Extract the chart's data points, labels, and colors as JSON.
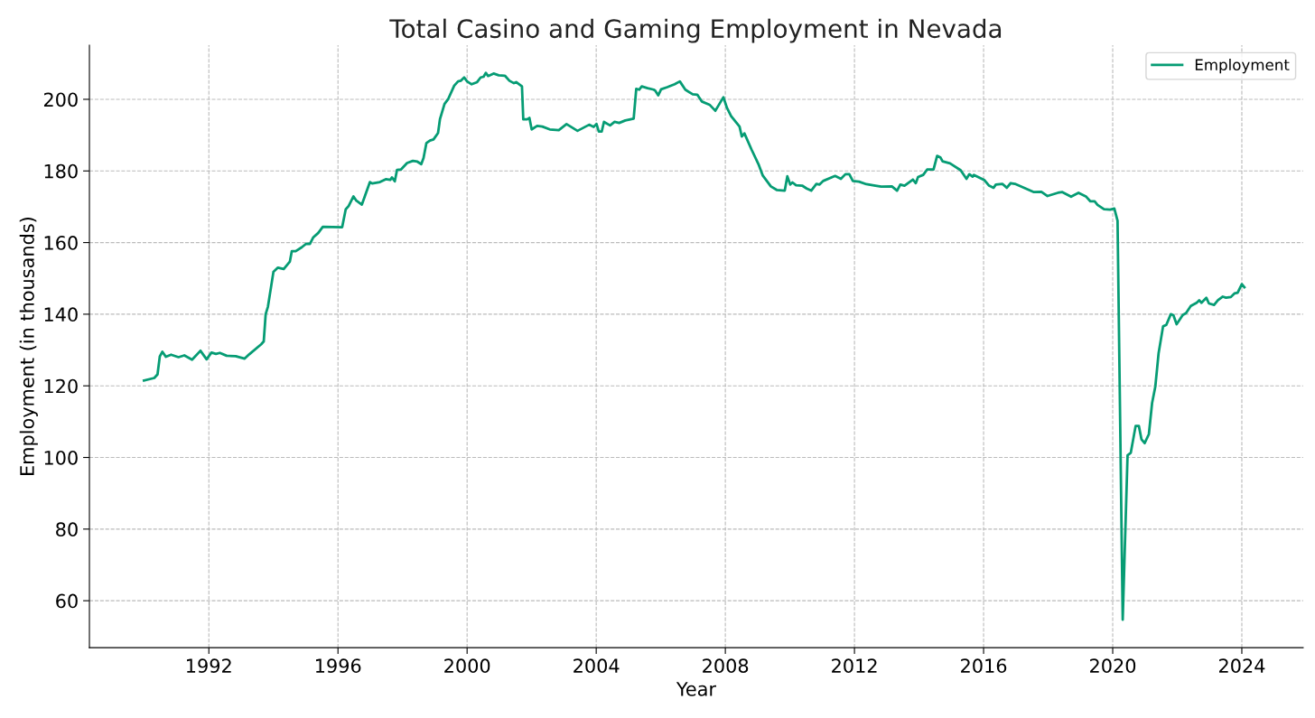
{
  "chart_data": {
    "type": "line",
    "title": "Total Casino and Gaming Employment in Nevada",
    "xlabel": "Year",
    "ylabel": "Employment (in thousands)",
    "xlim": [
      1988.3,
      2025.9
    ],
    "xticks": [
      1992,
      1996,
      2000,
      2004,
      2008,
      2012,
      2016,
      2020,
      2024
    ],
    "ylim": [
      46.9,
      215.1
    ],
    "yticks": [
      60,
      80,
      100,
      120,
      140,
      160,
      180,
      200
    ],
    "grid": true,
    "legend": "top right",
    "line_style": "solid",
    "series": [
      {
        "name": "Employment",
        "color": "#069c74",
        "x": [
          1989.99,
          1990.31,
          1990.41,
          1990.48,
          1990.56,
          1990.67,
          1990.83,
          1991.06,
          1991.24,
          1991.48,
          1991.74,
          1991.93,
          1992.08,
          1992.22,
          1992.34,
          1992.55,
          1992.83,
          1993.11,
          1993.25,
          1993.62,
          1993.7,
          1993.76,
          1993.83,
          1994.0,
          1994.14,
          1994.32,
          1994.51,
          1994.57,
          1994.69,
          1994.88,
          1995.02,
          1995.13,
          1995.23,
          1995.39,
          1995.53,
          1996.13,
          1996.24,
          1996.33,
          1996.48,
          1996.57,
          1996.74,
          1996.99,
          1997.06,
          1997.3,
          1997.48,
          1997.62,
          1997.67,
          1997.76,
          1997.83,
          1997.95,
          1998.14,
          1998.32,
          1998.46,
          1998.58,
          1998.65,
          1998.74,
          1998.85,
          1998.96,
          1999.1,
          1999.16,
          1999.3,
          1999.41,
          1999.6,
          1999.72,
          1999.81,
          1999.91,
          2000.0,
          2000.14,
          2000.31,
          2000.42,
          2000.51,
          2000.58,
          2000.65,
          2000.82,
          2000.98,
          2001.17,
          2001.31,
          2001.45,
          2001.52,
          2001.7,
          2001.74,
          2001.86,
          2001.93,
          2002.0,
          2002.17,
          2002.33,
          2002.56,
          2002.84,
          2003.08,
          2003.42,
          2003.78,
          2003.92,
          2004.01,
          2004.08,
          2004.17,
          2004.24,
          2004.43,
          2004.57,
          2004.71,
          2004.9,
          2005.16,
          2005.24,
          2005.33,
          2005.41,
          2005.59,
          2005.78,
          2005.83,
          2005.92,
          2006.01,
          2006.2,
          2006.43,
          2006.59,
          2006.76,
          2006.99,
          2007.13,
          2007.27,
          2007.51,
          2007.69,
          2007.94,
          2008.05,
          2008.18,
          2008.44,
          2008.51,
          2008.59,
          2008.81,
          2009.04,
          2009.16,
          2009.41,
          2009.59,
          2009.84,
          2009.92,
          2010.01,
          2010.08,
          2010.19,
          2010.38,
          2010.52,
          2010.66,
          2010.82,
          2010.92,
          2011.03,
          2011.4,
          2011.58,
          2011.72,
          2011.84,
          2011.95,
          2012.14,
          2012.37,
          2012.65,
          2012.83,
          2013.16,
          2013.32,
          2013.42,
          2013.55,
          2013.81,
          2013.9,
          2013.97,
          2014.13,
          2014.25,
          2014.45,
          2014.56,
          2014.66,
          2014.73,
          2014.96,
          2015.29,
          2015.47,
          2015.56,
          2015.66,
          2015.7,
          2016.03,
          2016.17,
          2016.31,
          2016.38,
          2016.58,
          2016.72,
          2016.84,
          2016.97,
          2017.56,
          2017.79,
          2017.98,
          2018.3,
          2018.44,
          2018.71,
          2018.94,
          2019.18,
          2019.31,
          2019.44,
          2019.53,
          2019.73,
          2019.92,
          2020.05,
          2020.15,
          2020.31,
          2020.46,
          2020.56,
          2020.71,
          2020.81,
          2020.89,
          2020.99,
          2021.12,
          2021.22,
          2021.32,
          2021.42,
          2021.56,
          2021.66,
          2021.8,
          2021.88,
          2021.98,
          2022.17,
          2022.27,
          2022.42,
          2022.6,
          2022.68,
          2022.75,
          2022.9,
          2022.98,
          2023.14,
          2023.26,
          2023.41,
          2023.51,
          2023.66,
          2023.77,
          2023.87,
          2024.0,
          2024.08
        ],
        "values": [
          121.5,
          122.2,
          123.2,
          128.2,
          129.5,
          128.1,
          128.7,
          128.0,
          128.5,
          127.3,
          129.8,
          127.4,
          129.3,
          128.9,
          129.2,
          128.4,
          128.3,
          127.6,
          128.8,
          131.6,
          132.4,
          140.0,
          142.1,
          151.8,
          153.0,
          152.6,
          154.7,
          157.6,
          157.6,
          158.7,
          159.7,
          159.6,
          161.4,
          162.7,
          164.4,
          164.3,
          169.3,
          170.2,
          172.9,
          171.7,
          170.6,
          176.9,
          176.5,
          176.9,
          177.7,
          177.5,
          178.2,
          177.1,
          180.3,
          180.4,
          182.2,
          182.8,
          182.6,
          181.9,
          183.6,
          187.8,
          188.5,
          188.8,
          190.6,
          194.5,
          198.7,
          200.0,
          203.8,
          205.0,
          205.2,
          206.1,
          205.0,
          204.2,
          204.8,
          206.1,
          206.3,
          207.4,
          206.5,
          207.2,
          206.7,
          206.6,
          205.2,
          204.5,
          204.8,
          203.6,
          194.4,
          194.4,
          194.8,
          191.6,
          192.6,
          192.4,
          191.6,
          191.4,
          193.1,
          191.2,
          192.9,
          192.3,
          193.1,
          191.0,
          191.0,
          193.7,
          192.7,
          193.7,
          193.4,
          194.1,
          194.6,
          202.9,
          202.7,
          203.6,
          203.1,
          202.7,
          202.4,
          201.1,
          202.8,
          203.4,
          204.2,
          205.0,
          202.7,
          201.4,
          201.3,
          199.4,
          198.5,
          196.8,
          200.6,
          197.6,
          195.3,
          192.4,
          189.6,
          190.5,
          186.0,
          181.6,
          178.7,
          175.7,
          174.7,
          174.5,
          178.5,
          176.2,
          176.8,
          176.0,
          175.9,
          175.1,
          174.5,
          176.4,
          176.2,
          177.2,
          178.6,
          177.8,
          179.1,
          179.1,
          177.2,
          177.0,
          176.3,
          175.9,
          175.6,
          175.7,
          174.5,
          176.2,
          175.9,
          177.6,
          176.6,
          178.3,
          178.9,
          180.4,
          180.4,
          184.2,
          183.8,
          182.7,
          182.1,
          180.2,
          177.8,
          179.1,
          178.4,
          178.9,
          177.4,
          175.9,
          175.3,
          176.2,
          176.4,
          175.3,
          176.6,
          176.4,
          174.1,
          174.2,
          173.0,
          173.9,
          174.1,
          172.8,
          173.9,
          172.8,
          171.5,
          171.5,
          170.5,
          169.3,
          169.2,
          169.5,
          166.1,
          54.7,
          100.6,
          101.3,
          108.8,
          108.8,
          105.1,
          104.0,
          106.5,
          115.2,
          119.8,
          129.0,
          136.6,
          137.0,
          140.0,
          139.7,
          137.2,
          139.8,
          140.3,
          142.3,
          143.2,
          143.9,
          143.2,
          144.6,
          143.0,
          142.6,
          143.9,
          144.9,
          144.6,
          144.8,
          145.8,
          146.0,
          148.4,
          147.5
        ]
      }
    ]
  }
}
